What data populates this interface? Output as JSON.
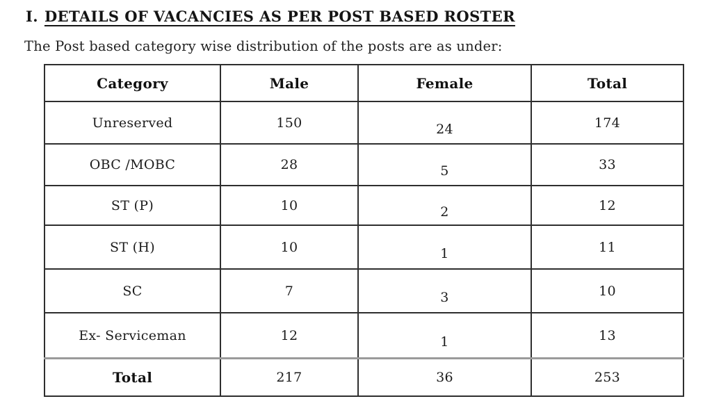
{
  "page": {
    "heading_numeral": "I.",
    "heading_text": "DETAILS OF VACANCIES AS PER POST BASED ROSTER",
    "subtitle": "The Post based category wise distribution of the posts are as under:"
  },
  "table": {
    "columns": {
      "category": "Category",
      "male": "Male",
      "female": "Female",
      "total": "Total"
    },
    "rows": [
      {
        "category": "Unreserved",
        "male": "150",
        "female": "24",
        "total": "174"
      },
      {
        "category": "OBC /MOBC",
        "male": "28",
        "female": "5",
        "total": "33"
      },
      {
        "category": "ST (P)",
        "male": "10",
        "female": "2",
        "total": "12"
      },
      {
        "category": "ST (H)",
        "male": "10",
        "female": "1",
        "total": "11"
      },
      {
        "category": "SC",
        "male": "7",
        "female": "3",
        "total": "10"
      },
      {
        "category": "Ex- Serviceman",
        "male": "12",
        "female": "1",
        "total": "13"
      }
    ],
    "footer": {
      "category": "Total",
      "male": "217",
      "female": "36",
      "total": "253"
    }
  },
  "colors": {
    "text": "#1c1c1c",
    "border": "#2e2e2e",
    "total_separator": "#9a9a9a",
    "background": "#ffffff"
  }
}
